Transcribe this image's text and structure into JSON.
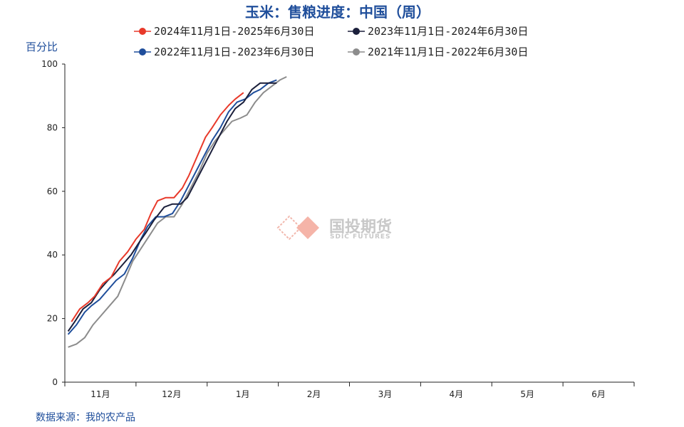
{
  "chart_data": {
    "type": "line",
    "title": "玉米：售粮进度：中国（周）",
    "ylabel": "百分比",
    "ylim": [
      0,
      100
    ],
    "yticks": [
      0,
      20,
      40,
      60,
      80,
      100
    ],
    "months": [
      "11月",
      "12月",
      "1月",
      "2月",
      "3月",
      "4月",
      "5月",
      "6月"
    ],
    "x_unit": "weeks since November 1 (month bands of ~4.3 weeks)",
    "legend_position": "top",
    "series": [
      {
        "name": "2024年11月1日-2025年6月30日",
        "color": "#e8392a",
        "points": [
          [
            0.4,
            19
          ],
          [
            0.9,
            23
          ],
          [
            1.4,
            25
          ],
          [
            1.8,
            27
          ],
          [
            2.3,
            31
          ],
          [
            2.8,
            33
          ],
          [
            3.3,
            38
          ],
          [
            3.8,
            41
          ],
          [
            4.3,
            45
          ],
          [
            4.8,
            48
          ],
          [
            5.2,
            53
          ],
          [
            5.6,
            57
          ],
          [
            6.1,
            58
          ],
          [
            6.6,
            58
          ],
          [
            7.1,
            61
          ],
          [
            7.5,
            65
          ],
          [
            8.0,
            71
          ],
          [
            8.5,
            77
          ],
          [
            8.9,
            80
          ],
          [
            9.4,
            84
          ],
          [
            9.9,
            87
          ],
          [
            10.3,
            89
          ],
          [
            10.8,
            91
          ]
        ]
      },
      {
        "name": "2023年11月1日-2024年6月30日",
        "color": "#1b1f3b",
        "points": [
          [
            0.2,
            16
          ],
          [
            0.6,
            19
          ],
          [
            1.1,
            23
          ],
          [
            1.6,
            25
          ],
          [
            2.1,
            29
          ],
          [
            2.6,
            32
          ],
          [
            3.0,
            34
          ],
          [
            3.5,
            37
          ],
          [
            4.0,
            40
          ],
          [
            4.5,
            44
          ],
          [
            4.9,
            47
          ],
          [
            5.4,
            51
          ],
          [
            6.0,
            55
          ],
          [
            6.5,
            56
          ],
          [
            7.0,
            56
          ],
          [
            7.4,
            58
          ],
          [
            7.9,
            63
          ],
          [
            8.4,
            68
          ],
          [
            8.8,
            72
          ],
          [
            9.3,
            77
          ],
          [
            9.8,
            82
          ],
          [
            10.3,
            86
          ],
          [
            10.8,
            88
          ],
          [
            11.3,
            92
          ],
          [
            11.8,
            94
          ],
          [
            12.3,
            94
          ],
          [
            12.8,
            94
          ]
        ]
      },
      {
        "name": "2022年11月1日-2023年6月30日",
        "color": "#1f4e9b",
        "points": [
          [
            0.2,
            15
          ],
          [
            0.7,
            18
          ],
          [
            1.2,
            22
          ],
          [
            1.6,
            24
          ],
          [
            2.1,
            26
          ],
          [
            2.6,
            29
          ],
          [
            3.1,
            32
          ],
          [
            3.6,
            34
          ],
          [
            4.1,
            39
          ],
          [
            4.6,
            45
          ],
          [
            5.0,
            49
          ],
          [
            5.5,
            52
          ],
          [
            6.0,
            52
          ],
          [
            6.5,
            53
          ],
          [
            7.0,
            57
          ],
          [
            7.5,
            62
          ],
          [
            7.9,
            66
          ],
          [
            8.4,
            71
          ],
          [
            8.9,
            76
          ],
          [
            9.4,
            80
          ],
          [
            9.9,
            85
          ],
          [
            10.4,
            88
          ],
          [
            10.9,
            89
          ],
          [
            11.4,
            91
          ],
          [
            11.8,
            92
          ],
          [
            12.3,
            94
          ],
          [
            12.8,
            95
          ]
        ]
      },
      {
        "name": "2021年11月1日-2022年6月30日",
        "color": "#8c8c8c",
        "points": [
          [
            0.2,
            11
          ],
          [
            0.7,
            12
          ],
          [
            1.2,
            14
          ],
          [
            1.7,
            18
          ],
          [
            2.2,
            21
          ],
          [
            2.7,
            24
          ],
          [
            3.2,
            27
          ],
          [
            3.7,
            33
          ],
          [
            4.1,
            38
          ],
          [
            4.6,
            42
          ],
          [
            5.1,
            46
          ],
          [
            5.6,
            50
          ],
          [
            6.1,
            52
          ],
          [
            6.6,
            52
          ],
          [
            7.1,
            56
          ],
          [
            7.6,
            61
          ],
          [
            8.1,
            66
          ],
          [
            8.6,
            72
          ],
          [
            9.1,
            76
          ],
          [
            9.6,
            79
          ],
          [
            10.1,
            82
          ],
          [
            10.6,
            83
          ],
          [
            11.0,
            84
          ],
          [
            11.5,
            88
          ],
          [
            12.0,
            91
          ],
          [
            12.5,
            93
          ],
          [
            13.0,
            95
          ],
          [
            13.4,
            96
          ]
        ]
      }
    ]
  },
  "source": "数据来源：我的农产品",
  "watermark": {
    "name_cn": "国投期货",
    "name_en": "SDIC FUTURES"
  }
}
